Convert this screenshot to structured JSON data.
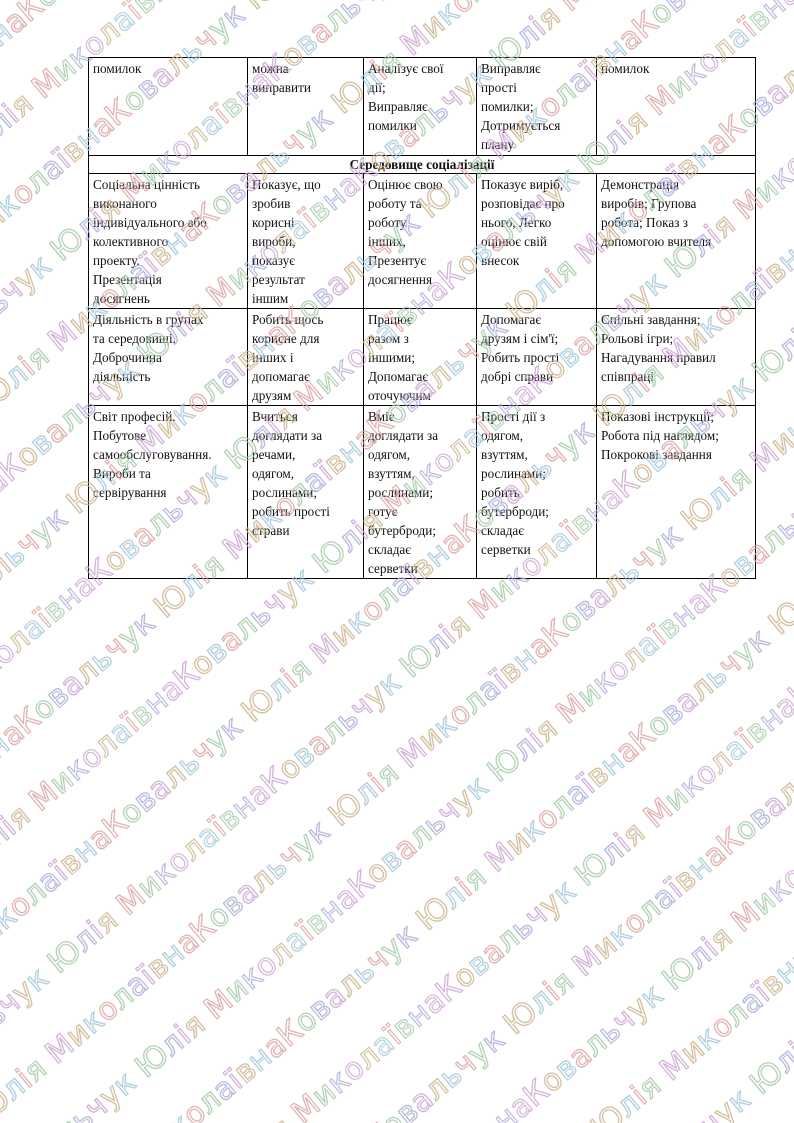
{
  "watermark": {
    "text": "Ковальчук Юлія Миколаївна",
    "colors": [
      "#d9a0a0",
      "#9fc7a3",
      "#a8a8d6",
      "#c9a0cf",
      "#c8b089",
      "#9ec3d6"
    ]
  },
  "table": {
    "rows_top": [
      [
        "помилок",
        "можна\nвиправити",
        "Аналізує свої\nдії;\nВиправляє\nпомилки",
        "Виправляє\nпрості\nпомилки;\nДотримується\nплану",
        "помилок"
      ]
    ],
    "section_header": "Середовище соціалізації",
    "rows": [
      [
        "Соціальна цінність\nвиконаного\nіндивідуального або\nколективного\nпроекту.\nПрезентація\nдосягнень",
        "Показує, що\nзробив\nкорисні\nвироби,\nпоказує\nрезультат\nіншим",
        "Оцінює свою\nроботу та\nроботу\nінших,\nПрезентує\nдосягнення",
        "Показує виріб,\nрозповідає про\nнього, Легко\nоцінює свій\nвнесок",
        "Демонстрація\nвиробів; Групова\nробота; Показ з\nдопомогою вчителя"
      ],
      [
        "Діяльність в групах\nта середовищі.\nДоброчинна\nдіяльність",
        "Робить щось\nкорисне для\nінших і\nдопомагає\nдрузям",
        "Працює\nразом з\nіншими;\nДопомагає\nоточуючим",
        "Допомагає\nдрузям і сім'ї;\nРобить прості\nдобрі справи",
        "Спільні завдання;\nРольові ігри;\nНагадування правил\nспівпраці"
      ],
      [
        "Світ професій.\nПобутове\nсамообслуговування.\nВироби та\nсервірування",
        "Вчиться\nдоглядати за\nречами,\nодягом,\nрослинами;\nробить прості\nстрави",
        "Вміє\nдоглядати за\nодягом,\nвзуттям,\nрослинами;\nготує\nбутерброди;\nскладає\nсерветки",
        "Прості дії з\nодягом,\nвзуттям,\nрослинами;\nробить\nбутерброди;\nскладає\nсерветки",
        "Показові інструкції;\nРобота під наглядом;\nПокрокові завдання"
      ]
    ]
  }
}
